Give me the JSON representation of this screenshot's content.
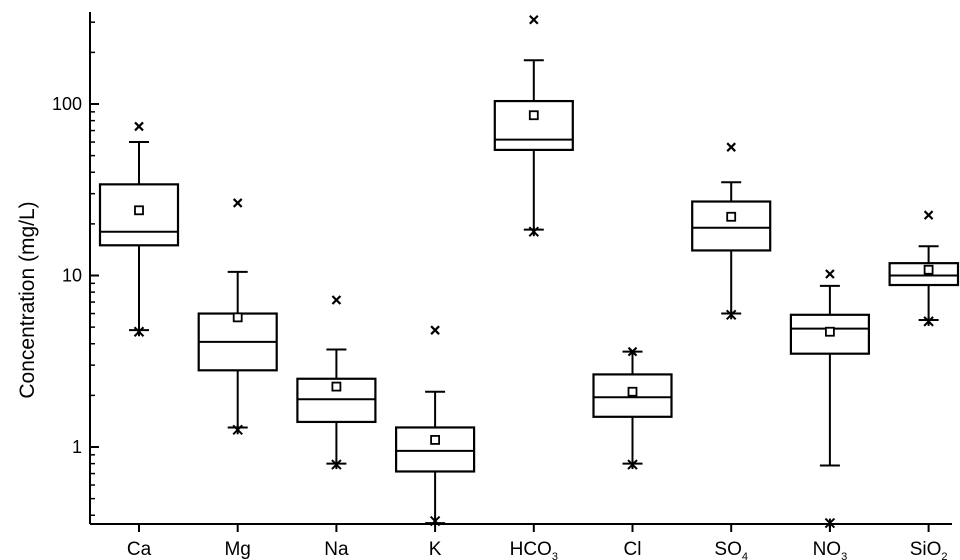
{
  "chart_data": {
    "type": "box",
    "ylabel": "Concentration (mg/L)",
    "xlabel": "",
    "title": "",
    "yscale": "log",
    "ylim": [
      0.36,
      330
    ],
    "yticks": [
      1,
      10,
      100
    ],
    "ytick_labels": [
      "1",
      "10",
      "100"
    ],
    "grid": false,
    "legend": "none",
    "categories": [
      {
        "name": "Ca",
        "main": "Ca",
        "sub": ""
      },
      {
        "name": "Mg",
        "main": "Mg",
        "sub": ""
      },
      {
        "name": "Na",
        "main": "Na",
        "sub": ""
      },
      {
        "name": "K",
        "main": "K",
        "sub": ""
      },
      {
        "name": "HCO3",
        "main": "HCO",
        "sub": "3"
      },
      {
        "name": "Cl",
        "main": "Cl",
        "sub": ""
      },
      {
        "name": "SO4",
        "main": "SO",
        "sub": "4"
      },
      {
        "name": "NO3",
        "main": "NO",
        "sub": "3"
      },
      {
        "name": "SiO2",
        "main": "SiO",
        "sub": "2"
      }
    ],
    "boxes": [
      {
        "whisker_low": 4.8,
        "q1": 15.0,
        "median": 18.0,
        "q3": 34.0,
        "whisker_high": 60.0,
        "mean": 24.0,
        "min": 4.7,
        "max": 74.0
      },
      {
        "whisker_low": 1.3,
        "q1": 2.8,
        "median": 4.1,
        "q3": 6.0,
        "whisker_high": 10.5,
        "mean": 5.7,
        "min": 1.26,
        "max": 26.5
      },
      {
        "whisker_low": 0.8,
        "q1": 1.4,
        "median": 1.9,
        "q3": 2.5,
        "whisker_high": 3.7,
        "mean": 2.25,
        "min": 0.79,
        "max": 7.2
      },
      {
        "whisker_low": 0.36,
        "q1": 0.72,
        "median": 0.95,
        "q3": 1.3,
        "whisker_high": 2.1,
        "mean": 1.1,
        "min": 0.37,
        "max": 4.8
      },
      {
        "whisker_low": 18.5,
        "q1": 54.0,
        "median": 62.0,
        "q3": 104.0,
        "whisker_high": 180.0,
        "mean": 86.0,
        "min": 18.0,
        "max": 310.0
      },
      {
        "whisker_low": 0.8,
        "q1": 1.5,
        "median": 1.95,
        "q3": 2.65,
        "whisker_high": 3.6,
        "mean": 2.1,
        "min": 0.79,
        "max": 3.6
      },
      {
        "whisker_low": 6.0,
        "q1": 14.0,
        "median": 19.0,
        "q3": 27.0,
        "whisker_high": 35.0,
        "mean": 22.0,
        "min": 5.9,
        "max": 56.0
      },
      {
        "whisker_low": 0.78,
        "q1": 3.5,
        "median": 4.9,
        "q3": 5.9,
        "whisker_high": 8.7,
        "mean": 4.7,
        "min": 0.36,
        "max": 10.2
      },
      {
        "whisker_low": 5.5,
        "q1": 8.8,
        "median": 10.0,
        "q3": 11.8,
        "whisker_high": 14.8,
        "mean": 10.8,
        "min": 5.4,
        "max": 22.5
      }
    ]
  }
}
